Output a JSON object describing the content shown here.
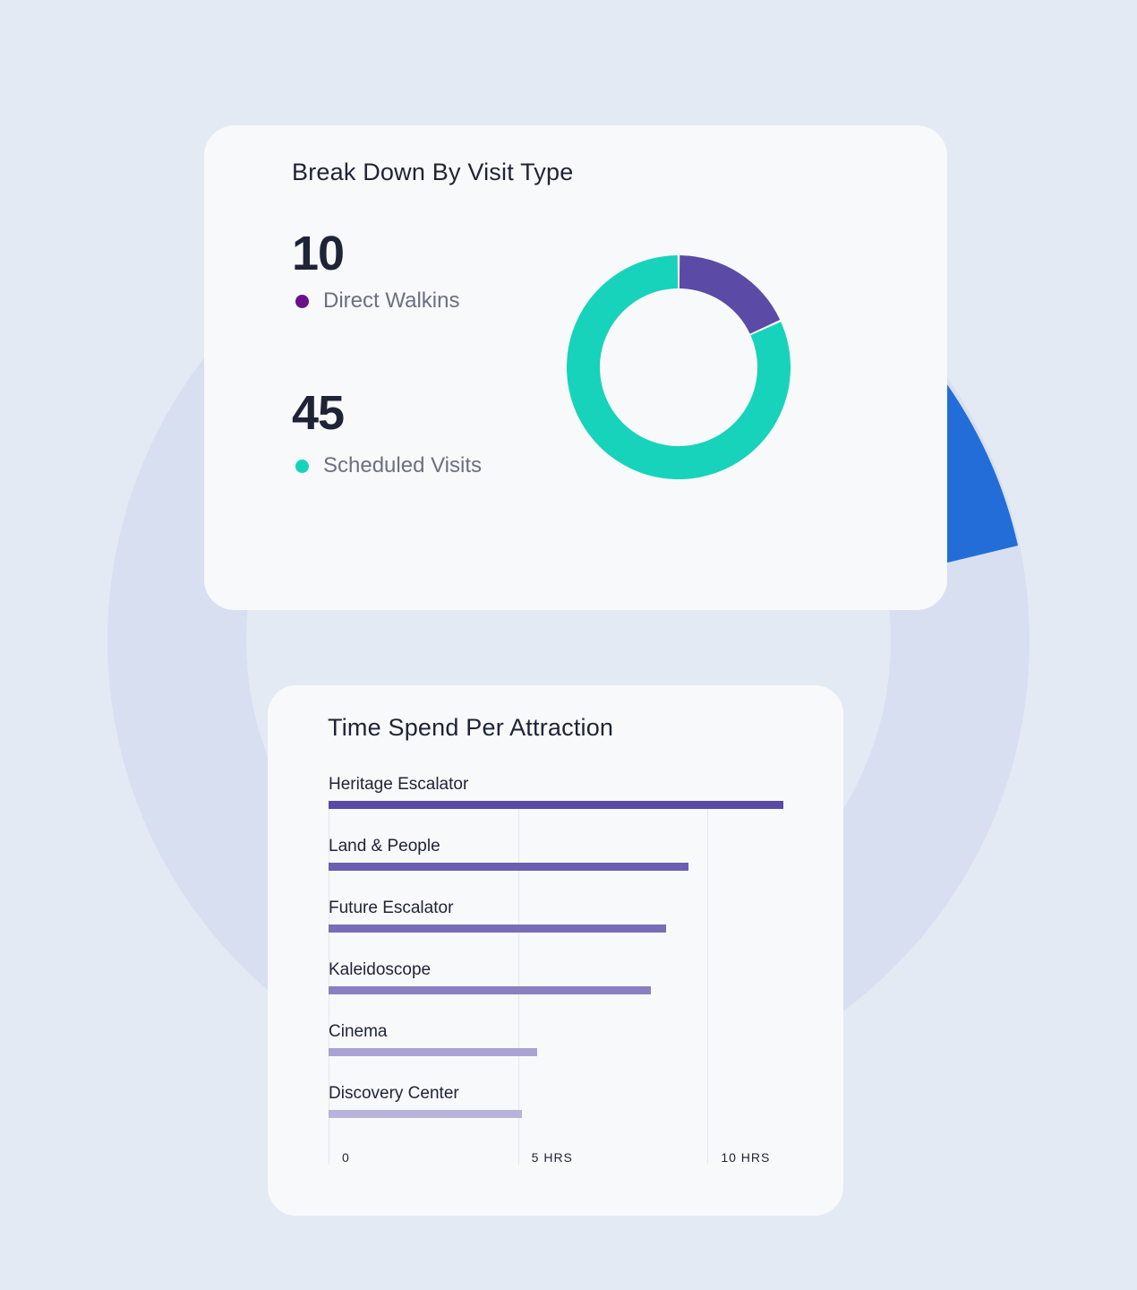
{
  "visit_card": {
    "title": "Break Down By Visit Type",
    "stats": [
      {
        "value": "10",
        "label": "Direct Walkins",
        "color": "#6a0f8e"
      },
      {
        "value": "45",
        "label": "Scheduled Visits",
        "color": "#17d3bb"
      }
    ]
  },
  "time_card": {
    "title": "Time Spend Per Attraction"
  },
  "chart_data": [
    {
      "type": "pie",
      "variant": "donut",
      "categories": [
        "Direct Walkins",
        "Scheduled Visits"
      ],
      "values": [
        10,
        45
      ],
      "colors": [
        "#5b4aa6",
        "#17d3bb"
      ]
    },
    {
      "type": "bar",
      "orientation": "horizontal",
      "categories": [
        "Heritage Escalator",
        "Land & People",
        "Future Escalator",
        "Kaleidoscope",
        "Cinema",
        "Discovery Center"
      ],
      "values": [
        12,
        9.5,
        8.9,
        8.5,
        5.5,
        5.1
      ],
      "colors": [
        "#5a4aa3",
        "#6b5db0",
        "#7a6db8",
        "#8a7fc0",
        "#aaa2d3",
        "#b9b3db"
      ],
      "xlim": [
        0,
        12
      ],
      "xticks": [
        0,
        5,
        10
      ],
      "xtick_labels": [
        "0",
        "5 HRS",
        "10 HRS"
      ],
      "grid": true
    }
  ]
}
